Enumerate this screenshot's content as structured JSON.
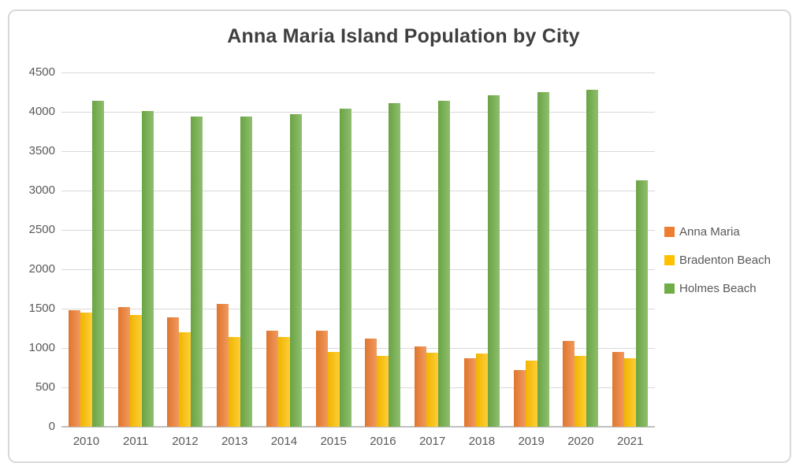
{
  "title": "Anna Maria Island Population by City",
  "chart_data": {
    "type": "bar",
    "title": "Anna Maria Island Population by City",
    "categories": [
      "2010",
      "2011",
      "2012",
      "2013",
      "2014",
      "2015",
      "2016",
      "2017",
      "2018",
      "2019",
      "2020",
      "2021"
    ],
    "series": [
      {
        "name": "Anna Maria",
        "color": "#ED7D31",
        "values": [
          1480,
          1520,
          1390,
          1560,
          1220,
          1220,
          1120,
          1020,
          865,
          715,
          1090,
          950
        ]
      },
      {
        "name": "Bradenton Beach",
        "color": "#FFC000",
        "values": [
          1445,
          1420,
          1200,
          1140,
          1140,
          950,
          900,
          940,
          925,
          835,
          900,
          865
        ]
      },
      {
        "name": "Holmes Beach",
        "color": "#70AD47",
        "values": [
          4140,
          4010,
          3935,
          3940,
          3965,
          4040,
          4110,
          4135,
          4205,
          4245,
          4275,
          3130
        ]
      }
    ],
    "xlabel": "",
    "ylabel": "",
    "ylim": [
      0,
      4500
    ],
    "ytick_step": 500,
    "yticks": [
      0,
      500,
      1000,
      1500,
      2000,
      2500,
      3000,
      3500,
      4000,
      4500
    ],
    "grid": true,
    "legend_position": "right"
  },
  "colors": {
    "title_text": "#3f3f3f",
    "axis_text": "#595959",
    "gridline": "#d9d9d9",
    "axis_line": "#bfbfbf",
    "frame_border": "#d9d9d9",
    "background": "#ffffff"
  }
}
